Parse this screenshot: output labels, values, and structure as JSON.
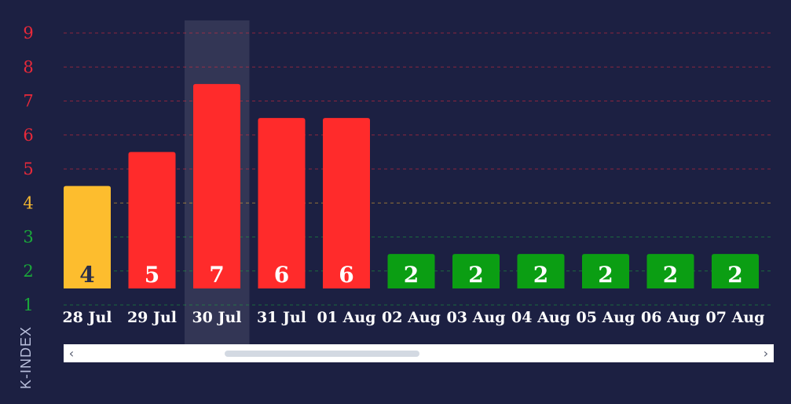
{
  "chart_data": {
    "type": "bar",
    "ylabel": "K-INDEX",
    "ylim": [
      1,
      9
    ],
    "yticks": [
      {
        "label": "9",
        "value": 9,
        "color": "#e8293a"
      },
      {
        "label": "8",
        "value": 8,
        "color": "#e8293a"
      },
      {
        "label": "7",
        "value": 7,
        "color": "#e8293a"
      },
      {
        "label": "6",
        "value": 6,
        "color": "#e8293a"
      },
      {
        "label": "5",
        "value": 5,
        "color": "#e8293a"
      },
      {
        "label": "4",
        "value": 4,
        "color": "#f5b830"
      },
      {
        "label": "3",
        "value": 3,
        "color": "#1aa83a"
      },
      {
        "label": "2",
        "value": 2,
        "color": "#1aa83a"
      },
      {
        "label": "1",
        "value": 1,
        "color": "#1aa83a"
      }
    ],
    "categories": [
      "28 Jul",
      "29 Jul",
      "30 Jul",
      "31 Jul",
      "01 Aug",
      "02 Aug",
      "03 Aug",
      "04 Aug",
      "05 Aug",
      "06 Aug",
      "07 Aug"
    ],
    "values": [
      4,
      5,
      7,
      6,
      6,
      2,
      2,
      2,
      2,
      2,
      2
    ],
    "bar_colors": [
      "#fdbd2e",
      "#ff2b2b",
      "#ff2b2b",
      "#ff2b2b",
      "#ff2b2b",
      "#0b9e13",
      "#0b9e13",
      "#0b9e13",
      "#0b9e13",
      "#0b9e13",
      "#0b9e13"
    ],
    "label_colors": [
      "#2a2d48",
      "#ffffff",
      "#ffffff",
      "#ffffff",
      "#ffffff",
      "#ffffff",
      "#ffffff",
      "#ffffff",
      "#ffffff",
      "#ffffff",
      "#ffffff"
    ],
    "highlighted": "30 Jul",
    "grid": true
  },
  "scrollbar": {
    "left_arrow": "‹",
    "right_arrow": "›"
  }
}
